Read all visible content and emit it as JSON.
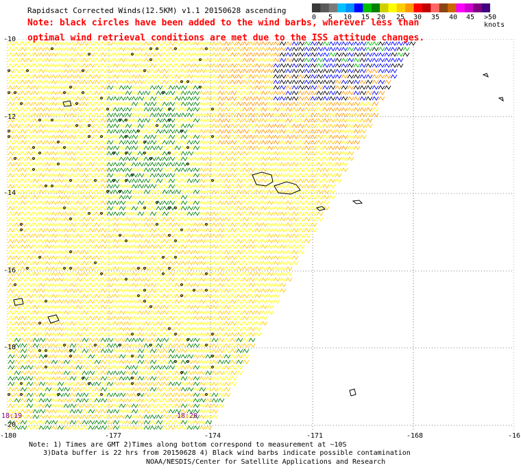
{
  "title": "Rapidsact Corrected Winds(12.5KM) v1.1 20150628 ascending",
  "note_line1": "Note: black circles have been added to the wind barbs, wherever less than",
  "note_line2": "optimal wind retrieval conditions are met due to the ISS attitude changes.",
  "legend": {
    "labels": [
      "0",
      "5",
      "10",
      "15",
      "20",
      "25",
      "30",
      "35",
      "40",
      "45",
      ">50 knots"
    ],
    "colors": [
      "#3a3a3a",
      "#5a5a5a",
      "#7a7a7a",
      "#00c0ff",
      "#0090ff",
      "#0000ff",
      "#00c000",
      "#008000",
      "#d0d000",
      "#ffff00",
      "#ffcc00",
      "#ff9900",
      "#ff0000",
      "#c00000",
      "#ff6666",
      "#8b4513",
      "#cc6600",
      "#ff00ff",
      "#cc00cc",
      "#800080",
      "#400080"
    ]
  },
  "lat_labels": [
    "-10",
    "-12",
    "-14",
    "-16",
    "-18",
    "-20"
  ],
  "lon_labels": [
    "-180",
    "-177",
    "-174",
    "-171",
    "-168",
    "-16"
  ],
  "time_labels": [
    "18:19",
    "18:20"
  ],
  "footnote_line1": "Note: 1) Times are GMT 2)Times along bottom correspond to measurement at ~10S",
  "footnote_line2": "3)Data buffer is 22 hrs from 20150628 4) Black wind barbs indicate possible contamination",
  "credit": "NOAA/NESDIS/Center for Satellite Applications and Research"
}
